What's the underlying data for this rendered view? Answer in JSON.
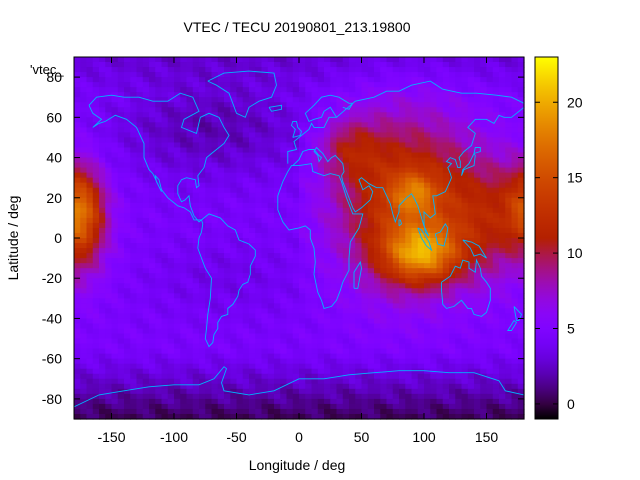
{
  "chart_data": {
    "type": "heatmap",
    "title": "VTEC / TECU 20190801_213.19800",
    "xlabel": "Longitude / deg",
    "ylabel": "Latitude / deg",
    "xlim": [
      -180,
      180
    ],
    "ylim": [
      -90,
      90
    ],
    "x_ticks": [
      -150,
      -100,
      -50,
      0,
      50,
      100,
      150
    ],
    "y_ticks": [
      -80,
      -60,
      -40,
      -20,
      0,
      20,
      40,
      60,
      80
    ],
    "colorbar": {
      "min": -1,
      "max": 23,
      "ticks": [
        0,
        5,
        10,
        15,
        20
      ]
    },
    "key_label": "'vtec_",
    "overlay": "coastlines",
    "palette": "gnuplot-pm3d",
    "grid": false
  }
}
